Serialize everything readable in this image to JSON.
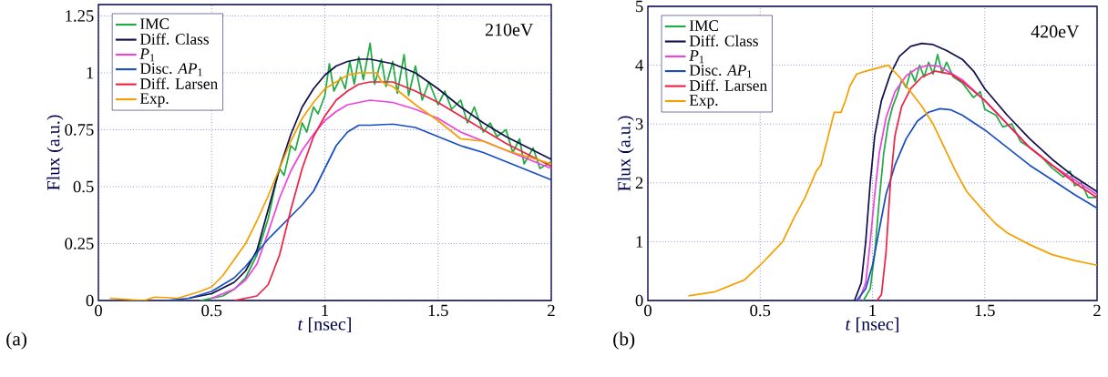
{
  "chart_data": [
    {
      "type": "line",
      "xlabel": "*t*  [nsec]",
      "ylabel": "Flux (a.u.)",
      "annotations": [
        "210eV",
        "(a)"
      ],
      "xlim": [
        0,
        2
      ],
      "ylim": [
        0,
        1.3
      ],
      "xticks": [
        0,
        0.5,
        1,
        1.5,
        2
      ],
      "yticks": [
        0,
        0.25,
        0.5,
        0.75,
        1,
        1.25
      ],
      "grid": true,
      "legend": "top left",
      "marker": "none",
      "line_style": "solid",
      "series": [
        {
          "name": "IMC",
          "color": "#22aa44",
          "x": [
            0.45,
            0.55,
            0.6,
            0.65,
            0.7,
            0.75,
            0.78,
            0.8,
            0.82,
            0.85,
            0.87,
            0.9,
            0.92,
            0.95,
            0.97,
            1.0,
            1.02,
            1.04,
            1.07,
            1.09,
            1.11,
            1.13,
            1.15,
            1.17,
            1.2,
            1.22,
            1.25,
            1.27,
            1.3,
            1.32,
            1.35,
            1.37,
            1.4,
            1.43,
            1.46,
            1.5,
            1.53,
            1.56,
            1.6,
            1.63,
            1.66,
            1.7,
            1.73,
            1.76,
            1.8,
            1.83,
            1.86,
            1.88,
            1.92,
            1.95,
            2.0
          ],
          "values": [
            0,
            0.02,
            0.05,
            0.1,
            0.2,
            0.36,
            0.5,
            0.58,
            0.55,
            0.68,
            0.66,
            0.78,
            0.74,
            0.85,
            0.82,
            0.9,
            1.04,
            0.92,
            0.98,
            0.93,
            1.05,
            0.95,
            1.07,
            0.97,
            1.13,
            0.95,
            1.06,
            0.94,
            1.05,
            0.91,
            1.08,
            0.9,
            1.03,
            0.88,
            0.96,
            0.86,
            0.92,
            0.84,
            0.88,
            0.78,
            0.85,
            0.74,
            0.78,
            0.72,
            0.75,
            0.65,
            0.71,
            0.6,
            0.67,
            0.58,
            0.61
          ]
        },
        {
          "name": "Diff. Class",
          "color": "#10104a",
          "x": [
            0.4,
            0.5,
            0.6,
            0.65,
            0.7,
            0.75,
            0.8,
            0.85,
            0.9,
            0.95,
            1.0,
            1.05,
            1.1,
            1.15,
            1.2,
            1.3,
            1.4,
            1.5,
            1.6,
            1.7,
            1.8,
            1.9,
            2.0
          ],
          "values": [
            0.01,
            0.03,
            0.08,
            0.13,
            0.22,
            0.4,
            0.58,
            0.73,
            0.85,
            0.93,
            0.99,
            1.03,
            1.05,
            1.06,
            1.06,
            1.04,
            1.0,
            0.93,
            0.85,
            0.78,
            0.72,
            0.67,
            0.62
          ]
        },
        {
          "name": "*P*$_{1}$",
          "color": "#ee44dd",
          "x": [
            0.5,
            0.6,
            0.65,
            0.7,
            0.75,
            0.8,
            0.85,
            0.9,
            0.95,
            1.0,
            1.05,
            1.1,
            1.2,
            1.3,
            1.4,
            1.5,
            1.6,
            1.7,
            1.8,
            1.9,
            2.0
          ],
          "values": [
            0.01,
            0.05,
            0.09,
            0.16,
            0.3,
            0.45,
            0.57,
            0.66,
            0.73,
            0.79,
            0.83,
            0.86,
            0.88,
            0.87,
            0.84,
            0.8,
            0.74,
            0.7,
            0.66,
            0.62,
            0.58
          ]
        },
        {
          "name": "Disc. *AP*$_{1}$",
          "color": "#1a4fc0",
          "x": [
            0.3,
            0.4,
            0.5,
            0.6,
            0.65,
            0.7,
            0.75,
            0.8,
            0.85,
            0.9,
            0.95,
            1.0,
            1.05,
            1.1,
            1.15,
            1.2,
            1.3,
            1.4,
            1.5,
            1.6,
            1.7,
            1.8,
            1.9,
            2.0
          ],
          "values": [
            0,
            0.01,
            0.04,
            0.1,
            0.15,
            0.21,
            0.27,
            0.32,
            0.37,
            0.42,
            0.48,
            0.58,
            0.68,
            0.74,
            0.77,
            0.77,
            0.775,
            0.76,
            0.72,
            0.68,
            0.65,
            0.61,
            0.57,
            0.53
          ]
        },
        {
          "name": "Diff. Larsen",
          "color": "#ee2244",
          "x": [
            0.6,
            0.7,
            0.75,
            0.8,
            0.85,
            0.9,
            0.95,
            1.0,
            1.05,
            1.1,
            1.15,
            1.2,
            1.3,
            1.4,
            1.5,
            1.6,
            1.7,
            1.8,
            1.9,
            2.0
          ],
          "values": [
            0,
            0.02,
            0.07,
            0.2,
            0.4,
            0.58,
            0.72,
            0.81,
            0.88,
            0.92,
            0.95,
            0.96,
            0.96,
            0.92,
            0.87,
            0.81,
            0.75,
            0.69,
            0.64,
            0.59
          ]
        },
        {
          "name": "Exp.",
          "color": "#f5a000",
          "x": [
            0.05,
            0.2,
            0.25,
            0.35,
            0.45,
            0.5,
            0.55,
            0.6,
            0.65,
            0.7,
            0.75,
            0.8,
            0.85,
            0.9,
            0.95,
            1.0,
            1.05,
            1.1,
            1.15,
            1.2,
            1.23,
            1.25,
            1.3,
            1.35,
            1.4,
            1.5,
            1.55,
            1.6,
            1.7,
            1.8,
            1.9,
            2.0
          ],
          "values": [
            0.01,
            0,
            0.015,
            0.01,
            0.04,
            0.06,
            0.11,
            0.18,
            0.25,
            0.35,
            0.46,
            0.58,
            0.7,
            0.8,
            0.87,
            0.93,
            0.96,
            0.99,
            1.0,
            1.0,
            1.0,
            0.96,
            0.94,
            0.9,
            0.86,
            0.79,
            0.75,
            0.71,
            0.7,
            0.66,
            0.63,
            0.6
          ]
        }
      ]
    },
    {
      "type": "line",
      "xlabel": "*t*  [nsec]",
      "ylabel": "Flux (a.u.)",
      "annotations": [
        "420eV",
        "(b)"
      ],
      "xlim": [
        0,
        2
      ],
      "ylim": [
        0,
        5
      ],
      "xticks": [
        0,
        0.5,
        1,
        1.5,
        2
      ],
      "yticks": [
        0,
        1,
        2,
        3,
        4,
        5
      ],
      "grid": true,
      "legend": "top left",
      "marker": "none",
      "line_style": "solid",
      "series": [
        {
          "name": "IMC",
          "color": "#22aa44",
          "x": [
            0.96,
            0.99,
            1.01,
            1.03,
            1.05,
            1.07,
            1.09,
            1.11,
            1.13,
            1.15,
            1.17,
            1.19,
            1.21,
            1.23,
            1.25,
            1.27,
            1.29,
            1.31,
            1.33,
            1.36,
            1.4,
            1.45,
            1.48,
            1.5,
            1.55,
            1.58,
            1.62,
            1.66,
            1.7,
            1.75,
            1.8,
            1.85,
            1.88,
            1.9,
            1.93,
            1.96,
            2.0
          ],
          "values": [
            0,
            0.2,
            0.8,
            1.7,
            2.5,
            3.0,
            3.3,
            3.5,
            3.75,
            3.62,
            3.9,
            3.72,
            4.0,
            3.8,
            4.05,
            3.85,
            4.18,
            3.87,
            4.05,
            3.8,
            3.7,
            3.45,
            3.55,
            3.25,
            3.15,
            2.95,
            3.0,
            2.7,
            2.6,
            2.45,
            2.25,
            2.1,
            2.2,
            1.95,
            2.0,
            1.75,
            1.75
          ]
        },
        {
          "name": "Diff. Class",
          "color": "#10104a",
          "x": [
            0.92,
            0.95,
            0.97,
            0.99,
            1.01,
            1.04,
            1.08,
            1.12,
            1.17,
            1.22,
            1.27,
            1.33,
            1.4,
            1.45,
            1.5,
            1.6,
            1.7,
            1.8,
            1.9,
            2.0
          ],
          "values": [
            0,
            0.3,
            1.0,
            2.0,
            2.8,
            3.4,
            3.85,
            4.15,
            4.32,
            4.37,
            4.35,
            4.25,
            4.1,
            3.9,
            3.6,
            3.15,
            2.75,
            2.4,
            2.1,
            1.85
          ]
        },
        {
          "name": "*P*$_{1}$",
          "color": "#ee44dd",
          "x": [
            0.94,
            0.97,
            0.99,
            1.01,
            1.03,
            1.06,
            1.1,
            1.15,
            1.2,
            1.25,
            1.3,
            1.4,
            1.5,
            1.6,
            1.7,
            1.8,
            1.9,
            2.0
          ],
          "values": [
            0,
            0.3,
            1.0,
            1.8,
            2.5,
            3.1,
            3.55,
            3.82,
            3.95,
            4.0,
            3.98,
            3.75,
            3.4,
            3.0,
            2.6,
            2.3,
            2.05,
            1.8
          ]
        },
        {
          "name": "Disc. *AP*$_{1}$",
          "color": "#1a4fc0",
          "x": [
            0.93,
            0.97,
            1.0,
            1.03,
            1.06,
            1.1,
            1.15,
            1.2,
            1.25,
            1.3,
            1.35,
            1.4,
            1.5,
            1.6,
            1.7,
            1.8,
            1.9,
            2.0
          ],
          "values": [
            0,
            0.2,
            0.6,
            1.2,
            1.8,
            2.3,
            2.75,
            3.05,
            3.2,
            3.26,
            3.24,
            3.15,
            2.9,
            2.6,
            2.3,
            2.05,
            1.8,
            1.57
          ]
        },
        {
          "name": "Diff. Larsen",
          "color": "#ee2244",
          "x": [
            1.02,
            1.04,
            1.06,
            1.08,
            1.1,
            1.13,
            1.17,
            1.22,
            1.28,
            1.35,
            1.4,
            1.5,
            1.6,
            1.7,
            1.8,
            1.9,
            2.0
          ],
          "values": [
            0,
            0.1,
            0.8,
            2.0,
            2.8,
            3.3,
            3.6,
            3.8,
            3.9,
            3.85,
            3.72,
            3.4,
            3.0,
            2.6,
            2.3,
            2.0,
            1.75
          ]
        },
        {
          "name": "Exp.",
          "color": "#f5a000",
          "x": [
            0.18,
            0.3,
            0.43,
            0.5,
            0.55,
            0.6,
            0.65,
            0.7,
            0.75,
            0.77,
            0.8,
            0.83,
            0.86,
            0.88,
            0.9,
            0.93,
            0.97,
            1.02,
            1.07,
            1.12,
            1.17,
            1.22,
            1.27,
            1.32,
            1.37,
            1.42,
            1.5,
            1.55,
            1.6,
            1.7,
            1.8,
            1.9,
            2.0
          ],
          "values": [
            0.08,
            0.15,
            0.35,
            0.6,
            0.8,
            1.0,
            1.4,
            1.75,
            2.2,
            2.3,
            2.75,
            3.2,
            3.2,
            3.4,
            3.65,
            3.85,
            3.9,
            3.95,
            4.0,
            3.8,
            3.55,
            3.3,
            3.0,
            2.6,
            2.2,
            1.85,
            1.5,
            1.3,
            1.15,
            0.95,
            0.78,
            0.68,
            0.6
          ]
        }
      ]
    }
  ]
}
